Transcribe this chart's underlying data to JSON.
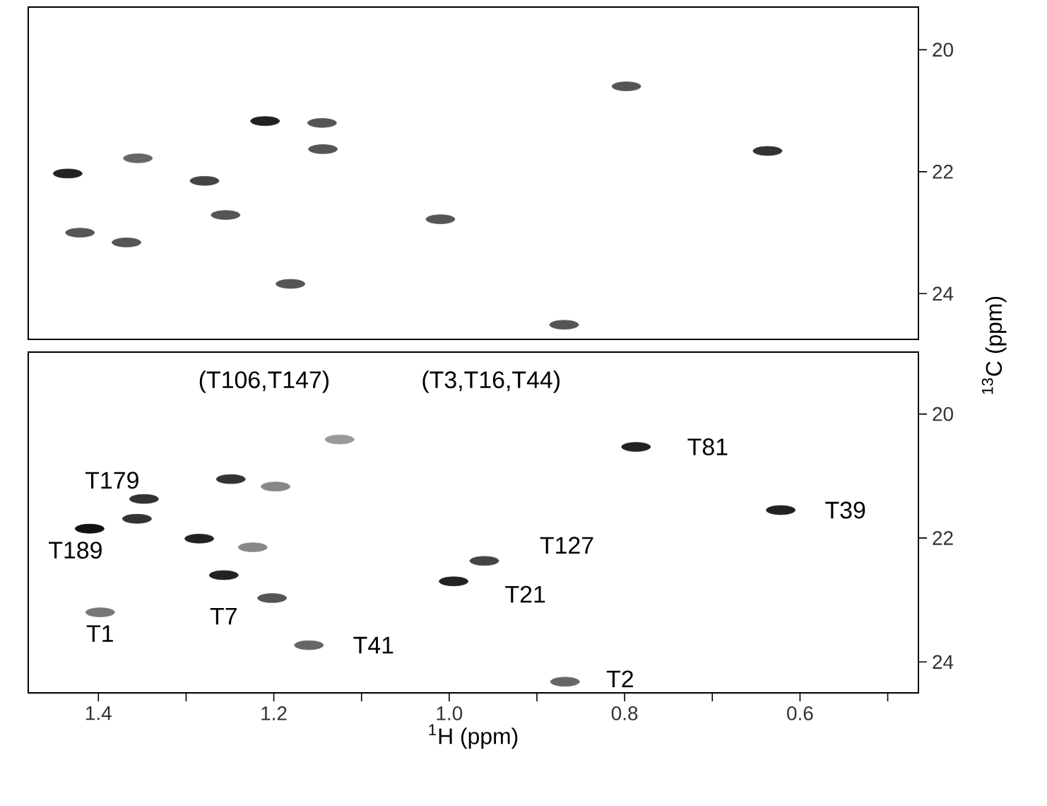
{
  "chart_data": [
    {
      "type": "scatter",
      "tick_labels": "y",
      "x": [
        1.435,
        1.355,
        1.279,
        1.255,
        1.21,
        1.145,
        1.144,
        1.01,
        0.798,
        0.637,
        0.869,
        1.421,
        1.368,
        1.181
      ],
      "values": [
        22.03,
        21.78,
        22.15,
        22.71,
        21.17,
        21.2,
        21.63,
        22.78,
        20.6,
        21.66,
        24.51,
        23.0,
        23.16,
        23.84
      ],
      "colors": [
        "#222222",
        "#666666",
        "#444444",
        "#555555",
        "#222222",
        "#555555",
        "#555555",
        "#555555",
        "#555555",
        "#333333",
        "#555555",
        "#555555",
        "#555555",
        "#555555"
      ],
      "xlim": [
        1.48,
        0.465
      ],
      "ylim": [
        24.75,
        19.3
      ],
      "yticks": [
        20,
        22,
        24
      ]
    },
    {
      "type": "scatter",
      "xlabel": "$^{1}$H  (ppm)",
      "ylabel": "$^{13}$C (ppm)",
      "x": [
        1.348,
        1.356,
        1.41,
        1.398,
        1.285,
        1.257,
        1.224,
        1.202,
        1.125,
        1.16,
        0.96,
        0.995,
        0.787,
        0.622,
        0.868,
        1.249,
        1.198
      ],
      "values": [
        21.37,
        21.69,
        21.85,
        23.2,
        22.01,
        22.6,
        22.15,
        22.97,
        20.41,
        23.73,
        22.37,
        22.7,
        20.53,
        21.55,
        24.32,
        21.05,
        21.17
      ],
      "colors": [
        "#333333",
        "#333333",
        "#111111",
        "#777777",
        "#222222",
        "#222222",
        "#888888",
        "#555555",
        "#999999",
        "#666666",
        "#444444",
        "#222222",
        "#222222",
        "#222222",
        "#666666",
        "#333333",
        "#888888"
      ],
      "xlim": [
        1.48,
        0.465
      ],
      "ylim": [
        24.5,
        19.0
      ],
      "xticks": [
        1.4,
        {
          "value": 1.3,
          "label": null
        },
        1.2,
        {
          "value": 1.1,
          "label": null
        },
        {
          "value": 1.0,
          "label": "1.0"
        },
        {
          "value": 0.9,
          "label": null
        },
        0.8,
        {
          "value": 0.7,
          "label": null
        },
        0.6,
        {
          "value": 0.5,
          "label": null
        }
      ],
      "yticks": [
        20,
        22,
        24
      ],
      "annotations": [
        {
          "text": "T179",
          "x": 1.348,
          "y": 21.37
        },
        {
          "text": "T189",
          "x": 1.41,
          "y": 21.85
        },
        {
          "text": "T1",
          "x": 1.398,
          "y": 23.2
        },
        {
          "text": "T7",
          "x": 1.257,
          "y": 22.6
        },
        {
          "text": "T41",
          "x": 1.16,
          "y": 23.73
        },
        {
          "text": "T127",
          "x": 0.96,
          "y": 22.37
        },
        {
          "text": "T21",
          "x": 0.995,
          "y": 22.7
        },
        {
          "text": "T81",
          "x": 0.787,
          "y": 20.53
        },
        {
          "text": "T39",
          "x": 0.622,
          "y": 21.55
        },
        {
          "text": "T2",
          "x": 0.868,
          "y": 24.32
        },
        "(T106,T147)",
        "(T3,T16,T44)"
      ]
    }
  ]
}
